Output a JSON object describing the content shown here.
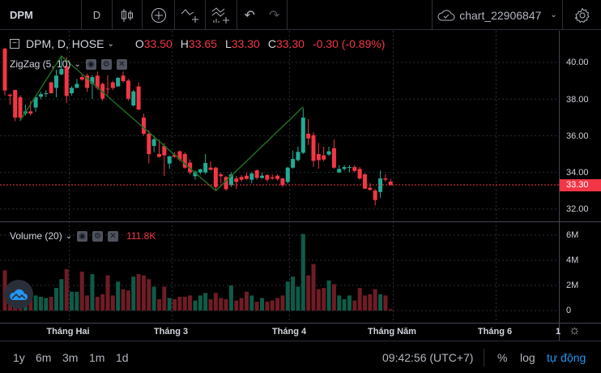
{
  "toolbar": {
    "symbol": "DPM",
    "interval": "D",
    "chart_name": "chart_22906847"
  },
  "legend": {
    "title": "DPM, D, HOSE",
    "o_label": "O",
    "o": "33.50",
    "h_label": "H",
    "h": "33.65",
    "l_label": "L",
    "l": "33.30",
    "c_label": "C",
    "c": "33.30",
    "change": "-0.30 (-0.89%)"
  },
  "zigzag": {
    "label": "ZigZag (5, 10)"
  },
  "volume": {
    "label": "Volume (20)",
    "value": "111.8K"
  },
  "price_axis": {
    "ticks": [
      "40.00",
      "38.00",
      "36.00",
      "34.00",
      "32.00"
    ],
    "last": "33.30"
  },
  "volume_axis": {
    "ticks": [
      "6M",
      "4M",
      "2M",
      "0"
    ]
  },
  "time_axis": {
    "labels": [
      "Tháng Hai",
      "Tháng 3",
      "Tháng 4",
      "Tháng Năm",
      "Tháng 6",
      "19"
    ]
  },
  "bottom": {
    "ranges": [
      "1y",
      "6m",
      "3m",
      "1m",
      "1d"
    ],
    "clock": "09:42:56 (UTC+7)",
    "percent": "%",
    "log": "log",
    "auto": "tự động"
  },
  "colors": {
    "up": "#22ab94",
    "down": "#f23645",
    "vol_up": "#0e5b48",
    "vol_down": "#6e1c25",
    "zigzag": "#1e6b1e"
  },
  "chart_data": {
    "type": "candlestick",
    "ohlc": [
      [
        40.75,
        40.8,
        38.2,
        38.47
      ],
      [
        38.24,
        38.3,
        37.7,
        38.17
      ],
      [
        38.5,
        38.5,
        36.8,
        36.99
      ],
      [
        38.1,
        38.2,
        36.8,
        36.99
      ],
      [
        37.21,
        37.7,
        37.1,
        37.33
      ],
      [
        37.33,
        37.9,
        37.1,
        37.21
      ],
      [
        37.54,
        38.2,
        37.3,
        38.1
      ],
      [
        38.13,
        38.4,
        38.0,
        38.27
      ],
      [
        38.27,
        38.5,
        38.1,
        38.32
      ],
      [
        38.91,
        38.95,
        38.3,
        38.32
      ],
      [
        38.61,
        39.6,
        38.1,
        39.28
      ],
      [
        39.35,
        40.35,
        39.3,
        39.65
      ],
      [
        39.79,
        40.3,
        37.8,
        38.17
      ],
      [
        38.32,
        38.7,
        38.2,
        38.61
      ],
      [
        38.61,
        39.1,
        38.6,
        38.83
      ],
      [
        39.2,
        39.4,
        39.0,
        39.06
      ],
      [
        39.28,
        39.4,
        38.4,
        38.61
      ],
      [
        38.83,
        39.3,
        38.0,
        39.2
      ],
      [
        39.28,
        39.5,
        38.5,
        38.61
      ],
      [
        38.83,
        38.9,
        37.9,
        38.02
      ],
      [
        38.57,
        39.3,
        38.2,
        38.55
      ],
      [
        38.91,
        39.0,
        38.5,
        38.61
      ],
      [
        38.69,
        39.2,
        38.7,
        39.16
      ],
      [
        39.28,
        39.5,
        38.9,
        38.98
      ],
      [
        39.01,
        39.1,
        37.9,
        38.02
      ],
      [
        37.65,
        38.5,
        37.6,
        38.42
      ],
      [
        38.69,
        38.9,
        37.4,
        37.43
      ],
      [
        36.99,
        37.2,
        36.0,
        36.11
      ],
      [
        36.11,
        36.3,
        34.5,
        35.0
      ],
      [
        35.44,
        36.0,
        35.1,
        35.81
      ],
      [
        35.0,
        35.8,
        34.8,
        34.85
      ],
      [
        35.44,
        35.6,
        33.8,
        34.93
      ],
      [
        34.48,
        34.9,
        34.2,
        34.88
      ],
      [
        34.96,
        35.1,
        34.8,
        34.85
      ],
      [
        35.15,
        35.2,
        34.6,
        34.7
      ],
      [
        35.0,
        35.1,
        34.2,
        34.26
      ],
      [
        34.53,
        34.7,
        33.9,
        34.0
      ],
      [
        33.79,
        34.1,
        33.6,
        34.04
      ],
      [
        34.0,
        34.2,
        33.9,
        34.17
      ],
      [
        34.0,
        35.0,
        33.9,
        34.51
      ],
      [
        34.26,
        34.6,
        34.1,
        34.14
      ],
      [
        34.26,
        34.3,
        33.0,
        33.2
      ],
      [
        33.89,
        34.0,
        33.4,
        33.79
      ],
      [
        33.75,
        33.8,
        33.0,
        33.08
      ],
      [
        33.3,
        34.0,
        33.2,
        33.89
      ],
      [
        33.67,
        33.8,
        33.1,
        33.48
      ],
      [
        33.75,
        33.85,
        33.5,
        33.6
      ],
      [
        33.82,
        34.0,
        33.6,
        33.64
      ],
      [
        33.6,
        34.0,
        33.4,
        33.94
      ],
      [
        34.11,
        34.15,
        33.6,
        33.7
      ],
      [
        33.7,
        34.0,
        33.65,
        33.82
      ],
      [
        33.86,
        33.9,
        33.5,
        33.6
      ],
      [
        33.73,
        33.9,
        33.6,
        33.67
      ],
      [
        33.82,
        33.9,
        33.55,
        33.64
      ],
      [
        33.67,
        33.7,
        33.2,
        33.3
      ],
      [
        33.48,
        34.3,
        33.4,
        34.26
      ],
      [
        34.26,
        35.2,
        34.2,
        34.73
      ],
      [
        34.67,
        35.4,
        34.6,
        35.12
      ],
      [
        35.07,
        37.5,
        35.0,
        36.99
      ],
      [
        36.11,
        36.9,
        35.5,
        35.85
      ],
      [
        36.03,
        36.2,
        34.3,
        34.63
      ],
      [
        35.0,
        35.6,
        34.2,
        34.67
      ],
      [
        34.93,
        35.4,
        34.6,
        34.7
      ],
      [
        34.97,
        35.4,
        34.9,
        35.15
      ],
      [
        35.32,
        35.8,
        34.2,
        34.26
      ],
      [
        34.0,
        34.4,
        33.95,
        34.19
      ],
      [
        34.19,
        34.4,
        34.1,
        34.29
      ],
      [
        34.26,
        34.4,
        34.0,
        34.29
      ],
      [
        34.29,
        34.4,
        34.0,
        34.08
      ],
      [
        34.19,
        34.3,
        33.6,
        33.67
      ],
      [
        33.89,
        33.95,
        33.1,
        33.11
      ],
      [
        33.16,
        33.4,
        33.0,
        33.05
      ],
      [
        33.01,
        33.1,
        32.2,
        32.49
      ],
      [
        32.93,
        34.1,
        32.6,
        33.67
      ],
      [
        33.67,
        33.9,
        33.5,
        33.6
      ],
      [
        33.5,
        33.65,
        33.3,
        33.3
      ]
    ],
    "volume_millions": [
      3.2,
      1.5,
      1.3,
      1.4,
      1.2,
      1.3,
      1.2,
      1.1,
      1.0,
      1.1,
      1.8,
      2.5,
      3.3,
      1.5,
      1.5,
      3.1,
      1.2,
      2.9,
      1.1,
      1.3,
      2.8,
      1.2,
      2.3,
      1.7,
      1.6,
      2.7,
      2.9,
      2.8,
      2.5,
      1.9,
      0.9,
      1.9,
      1.0,
      0.9,
      1.1,
      1.1,
      1.2,
      0.8,
      1.2,
      1.4,
      0.9,
      1.4,
      1.0,
      0.9,
      2.0,
      0.8,
      1.0,
      1.5,
      1.2,
      0.7,
      1.0,
      0.7,
      0.8,
      1.0,
      1.2,
      2.3,
      2.7,
      1.9,
      6.1,
      2.8,
      3.7,
      1.7,
      1.8,
      2.4,
      2.1,
      1.2,
      0.9,
      1.2,
      0.8,
      1.8,
      1.2,
      1.3,
      1.7,
      1.3,
      1.2,
      0.1118
    ],
    "zigzag_points": [
      [
        3,
        36.84
      ],
      [
        11,
        40.35
      ],
      [
        41,
        33.0
      ],
      [
        58,
        37.58
      ]
    ],
    "price_range": [
      32,
      40
    ],
    "volume_range": [
      0,
      6
    ]
  }
}
